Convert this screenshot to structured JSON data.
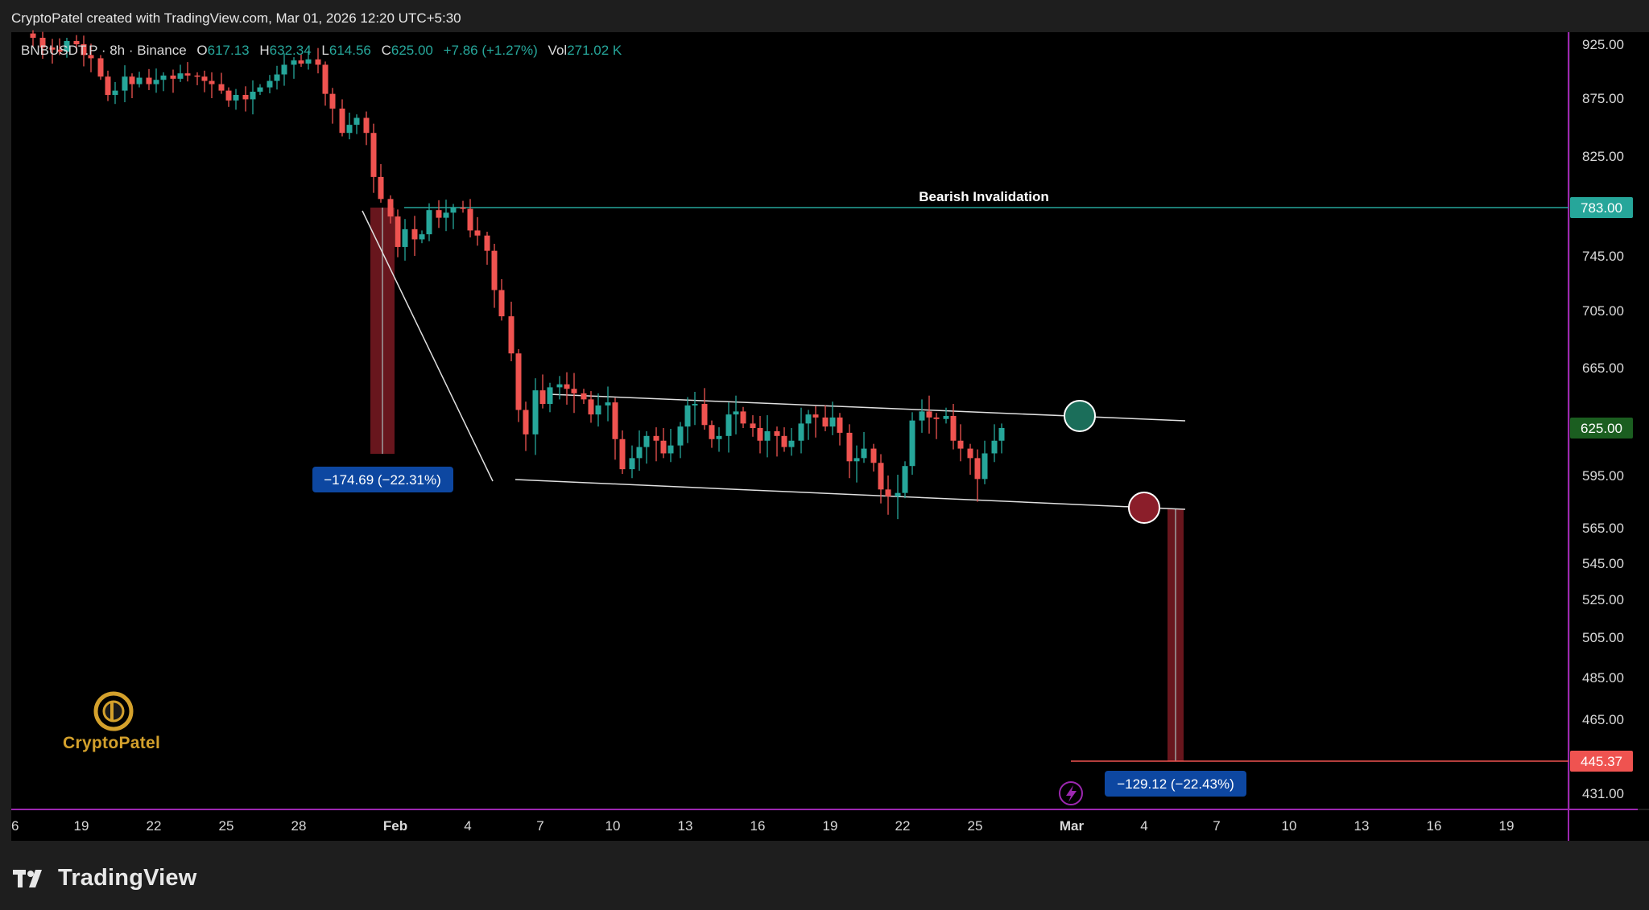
{
  "header": {
    "credit": "CryptoPatel created with TradingView.com, Mar 01, 2026 12:20 UTC+5:30"
  },
  "legend": {
    "symbol": "BNBUSDT.P · 8h · Binance",
    "o_label": "O",
    "o_value": "617.13",
    "h_label": "H",
    "h_value": "632.34",
    "l_label": "L",
    "l_value": "614.56",
    "c_label": "C",
    "c_value": "625.00",
    "change": "+7.86 (+1.27%)",
    "vol_label": "Vol",
    "vol_value": "271.02 K"
  },
  "watermark": {
    "text": "CryptoPatel"
  },
  "brand": {
    "text": "TradingView"
  },
  "colors": {
    "background": "#000000",
    "frame": "#1e1e1e",
    "up": "#26a69a",
    "down": "#ef5350",
    "accent_purple": "#9c27b0",
    "invalidation": "#26a69a",
    "target": "#ef5350",
    "label_blue": "#0d47a1"
  },
  "chart_data": {
    "type": "candlestick",
    "symbol": "BNBUSDT.P",
    "interval": "8h",
    "exchange": "Binance",
    "yaxis": {
      "ticks": [
        925,
        875,
        825,
        745,
        705,
        665,
        595,
        565,
        545,
        525,
        505,
        485,
        465,
        431
      ],
      "tick_labels": [
        "925.00",
        "875.00",
        "825.00",
        "745.00",
        "705.00",
        "665.00",
        "595.00",
        "565.00",
        "545.00",
        "525.00",
        "505.00",
        "485.00",
        "465.00",
        "431.00"
      ]
    },
    "xaxis": {
      "ticks": [
        "2026-01-16",
        "2026-01-19",
        "2026-01-22",
        "2026-01-25",
        "2026-01-28",
        "2026-02-01",
        "2026-02-04",
        "2026-02-07",
        "2026-02-10",
        "2026-02-13",
        "2026-02-16",
        "2026-02-19",
        "2026-02-22",
        "2026-02-25",
        "2026-03-01",
        "2026-03-04",
        "2026-03-07",
        "2026-03-10",
        "2026-03-13",
        "2026-03-16",
        "2026-03-19"
      ],
      "tick_labels": [
        "6",
        "19",
        "22",
        "25",
        "28",
        "Feb",
        "4",
        "7",
        "10",
        "13",
        "16",
        "19",
        "22",
        "25",
        "Mar",
        "4",
        "7",
        "10",
        "13",
        "16",
        "19"
      ]
    },
    "price_tags": [
      {
        "value": 783,
        "label": "783.00",
        "color": "#26a69a"
      },
      {
        "value": 625,
        "label": "625.00",
        "color": "#1b5e20"
      },
      {
        "value": 445.37,
        "label": "445.37",
        "color": "#ef5350"
      }
    ],
    "closes": [
      [
        "2026-01-17",
        931
      ],
      [
        "2026-01-17.4",
        922
      ],
      [
        "2026-01-17.8",
        920
      ],
      [
        "2026-01-18.1",
        918
      ],
      [
        "2026-01-18.4",
        928
      ],
      [
        "2026-01-18.8",
        925
      ],
      [
        "2026-01-19.1",
        915
      ],
      [
        "2026-01-19.4",
        912
      ],
      [
        "2026-01-19.8",
        895
      ],
      [
        "2026-01-20.1",
        878
      ],
      [
        "2026-01-20.4",
        882
      ],
      [
        "2026-01-20.8",
        895
      ],
      [
        "2026-01-21.1",
        888
      ],
      [
        "2026-01-21.4",
        894
      ],
      [
        "2026-01-21.8",
        888
      ],
      [
        "2026-01-22.1",
        892
      ],
      [
        "2026-01-22.4",
        896
      ],
      [
        "2026-01-22.8",
        893
      ],
      [
        "2026-01-23.1",
        898
      ],
      [
        "2026-01-23.4",
        896
      ],
      [
        "2026-01-23.8",
        895
      ],
      [
        "2026-01-24.1",
        891
      ],
      [
        "2026-01-24.4",
        888
      ],
      [
        "2026-01-24.8",
        882
      ],
      [
        "2026-01-25.1",
        873
      ],
      [
        "2026-01-25.4",
        878
      ],
      [
        "2026-01-25.8",
        874
      ],
      [
        "2026-01-26.1",
        881
      ],
      [
        "2026-01-26.4",
        885
      ],
      [
        "2026-01-26.8",
        891
      ],
      [
        "2026-01-27.1",
        897
      ],
      [
        "2026-01-27.4",
        906
      ],
      [
        "2026-01-27.8",
        910
      ],
      [
        "2026-01-28.1",
        907
      ],
      [
        "2026-01-28.4",
        911
      ],
      [
        "2026-01-28.8",
        906
      ],
      [
        "2026-01-29.1",
        879
      ],
      [
        "2026-01-29.4",
        866
      ],
      [
        "2026-01-29.8",
        845
      ],
      [
        "2026-01-30.1",
        852
      ],
      [
        "2026-01-30.4",
        858
      ],
      [
        "2026-01-30.8",
        845
      ],
      [
        "2026-01-31.1",
        808
      ],
      [
        "2026-01-31.4",
        790
      ],
      [
        "2026-01-31.8",
        776
      ],
      [
        "2026-02-01.1",
        752
      ],
      [
        "2026-02-01.4",
        766
      ],
      [
        "2026-02-01.8",
        758
      ],
      [
        "2026-02-02.1",
        762
      ],
      [
        "2026-02-02.4",
        781
      ],
      [
        "2026-02-02.8",
        775
      ],
      [
        "2026-02-03.1",
        779
      ],
      [
        "2026-02-03.4",
        783
      ],
      [
        "2026-02-03.8",
        782
      ],
      [
        "2026-02-04.1",
        765
      ],
      [
        "2026-02-04.4",
        761
      ],
      [
        "2026-02-04.8",
        749
      ],
      [
        "2026-02-05.1",
        720
      ],
      [
        "2026-02-05.4",
        701
      ],
      [
        "2026-02-05.8",
        675
      ],
      [
        "2026-02-06.1",
        637
      ],
      [
        "2026-02-06.4",
        621
      ],
      [
        "2026-02-06.8",
        650
      ],
      [
        "2026-02-07.1",
        641
      ],
      [
        "2026-02-07.4",
        652
      ],
      [
        "2026-02-07.8",
        654
      ],
      [
        "2026-02-08.1",
        651
      ],
      [
        "2026-02-08.4",
        648
      ],
      [
        "2026-02-08.8",
        644
      ],
      [
        "2026-02-09.1",
        634
      ],
      [
        "2026-02-09.4",
        640
      ],
      [
        "2026-02-09.8",
        642
      ],
      [
        "2026-02-10.1",
        618
      ],
      [
        "2026-02-10.4",
        599
      ],
      [
        "2026-02-10.8",
        606
      ],
      [
        "2026-02-11.1",
        613
      ],
      [
        "2026-02-11.4",
        620
      ],
      [
        "2026-02-11.8",
        617
      ],
      [
        "2026-02-12.1",
        609
      ],
      [
        "2026-02-12.4",
        614
      ],
      [
        "2026-02-12.8",
        626
      ],
      [
        "2026-02-13.1",
        640
      ],
      [
        "2026-02-13.4",
        641
      ],
      [
        "2026-02-13.8",
        627
      ],
      [
        "2026-02-14.1",
        618
      ],
      [
        "2026-02-14.4",
        620
      ],
      [
        "2026-02-14.8",
        634
      ],
      [
        "2026-02-15.1",
        636
      ],
      [
        "2026-02-15.4",
        628
      ],
      [
        "2026-02-15.8",
        625
      ],
      [
        "2026-02-16.1",
        617
      ],
      [
        "2026-02-16.4",
        623
      ],
      [
        "2026-02-16.8",
        620
      ],
      [
        "2026-02-17.1",
        613
      ],
      [
        "2026-02-17.4",
        617
      ],
      [
        "2026-02-17.8",
        628
      ],
      [
        "2026-02-18.1",
        634
      ],
      [
        "2026-02-18.4",
        632
      ],
      [
        "2026-02-18.8",
        626
      ],
      [
        "2026-02-19.1",
        632
      ],
      [
        "2026-02-19.4",
        622
      ],
      [
        "2026-02-19.8",
        604
      ],
      [
        "2026-02-20.1",
        606
      ],
      [
        "2026-02-20.4",
        612
      ],
      [
        "2026-02-20.8",
        603
      ],
      [
        "2026-02-21.1",
        587
      ],
      [
        "2026-02-21.4",
        583
      ],
      [
        "2026-02-21.8",
        585
      ],
      [
        "2026-02-22.1",
        601
      ],
      [
        "2026-02-22.4",
        630
      ],
      [
        "2026-02-22.8",
        636
      ],
      [
        "2026-02-23.1",
        632
      ],
      [
        "2026-02-23.4",
        631
      ],
      [
        "2026-02-23.8",
        633
      ],
      [
        "2026-02-24.1",
        617
      ],
      [
        "2026-02-24.4",
        612
      ],
      [
        "2026-02-24.8",
        606
      ],
      [
        "2026-02-25.1",
        593
      ],
      [
        "2026-02-25.4",
        609
      ],
      [
        "2026-02-25.8",
        617
      ],
      [
        "2026-02-26.1",
        625
      ]
    ],
    "annotations": [
      {
        "kind": "hline",
        "price": 783,
        "label": "Bearish Invalidation",
        "color": "#26a69a"
      },
      {
        "kind": "hline",
        "price": 445.37,
        "color": "#ef5350"
      },
      {
        "kind": "measure",
        "label": "−174.69 (−22.31%)",
        "from": 783,
        "to": 608.31
      },
      {
        "kind": "measure",
        "label": "−129.12 (−22.43%)",
        "from": 574.49,
        "to": 445.37
      },
      {
        "kind": "channel",
        "upper": [
          [
            "2026-02-07.4",
            650
          ],
          [
            "2026-03-06",
            630
          ]
        ],
        "lower": [
          [
            "2026-02-06.8",
            592
          ],
          [
            "2026-03-06",
            572
          ]
        ]
      },
      {
        "kind": "trendline",
        "from": [
          "2026-01-30.8",
          790
        ],
        "to": [
          "2026-02-05.8",
          595
        ]
      },
      {
        "kind": "marker",
        "shape": "circle",
        "color": "#1b6e5a",
        "at": [
          "2026-02-27",
          632
        ]
      },
      {
        "kind": "marker",
        "shape": "circle",
        "color": "#8b1e2a",
        "at": [
          "2026-03-04",
          576
        ]
      }
    ]
  }
}
